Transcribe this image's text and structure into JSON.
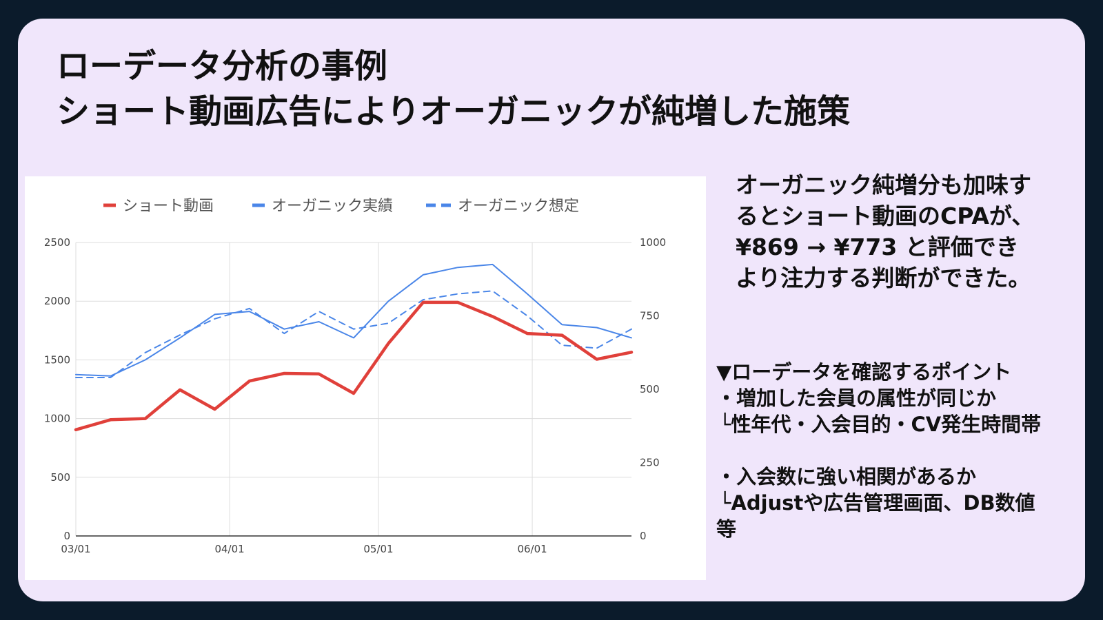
{
  "slide": {
    "title_lines": [
      "ローデータ分析の事例",
      "ショート動画広告によりオーガニックが純増した施策"
    ],
    "summary_lines": [
      "オーガニック純増分も加味す",
      "るとショート動画のCPAが、",
      "¥869 → ¥773 と評価でき",
      "より注力する判断ができた。"
    ],
    "points_lines": [
      "▼ローデータを確認するポイント",
      "・増加した会員の属性が同じか",
      "└性年代・入会目的・CV発生時間帯",
      "・入会数に強い相関があるか",
      "└Adjustや広告管理画面、DB数値",
      "等"
    ]
  },
  "colors": {
    "slide_background": "#f0e6fb",
    "page_background": "#0b1b2b",
    "short_video": "#e0403a",
    "organic_actual": "#4a86e8",
    "organic_expected": "#4a86e8",
    "grid": "#dddddd"
  },
  "chart_data": {
    "type": "line",
    "legend_position": "top",
    "grid": true,
    "x_tick_labels": [
      "03/01",
      "04/01",
      "05/01",
      "06/01"
    ],
    "left_axis": {
      "range": [
        0,
        2500
      ],
      "ticks": [
        "0",
        "500",
        "1000",
        "1500",
        "2000",
        "2500"
      ]
    },
    "right_axis": {
      "range": [
        0,
        1000
      ],
      "ticks": [
        "0",
        "250",
        "500",
        "750",
        "1000"
      ]
    },
    "x": [
      "03/01",
      "03/08",
      "03/15",
      "03/22",
      "03/29",
      "04/05",
      "04/12",
      "04/19",
      "04/26",
      "05/03",
      "05/10",
      "05/17",
      "05/24",
      "05/31",
      "06/07",
      "06/14",
      "06/21"
    ],
    "series": [
      {
        "name": "ショート動画",
        "axis": "left",
        "style": "solid",
        "values": [
          905,
          990,
          1000,
          1245,
          1080,
          1320,
          1385,
          1380,
          1215,
          1640,
          1990,
          1990,
          1870,
          1725,
          1710,
          1505,
          1565
        ]
      },
      {
        "name": "オーガニック実績",
        "axis": "right",
        "style": "solid",
        "values": [
          550,
          545,
          600,
          675,
          755,
          765,
          705,
          730,
          675,
          800,
          890,
          915,
          925,
          825,
          720,
          710,
          675
        ]
      },
      {
        "name": "オーガニック想定",
        "axis": "right",
        "style": "dashed",
        "values": [
          540,
          540,
          625,
          685,
          740,
          775,
          690,
          765,
          705,
          725,
          805,
          825,
          835,
          750,
          650,
          640,
          705
        ]
      }
    ]
  }
}
